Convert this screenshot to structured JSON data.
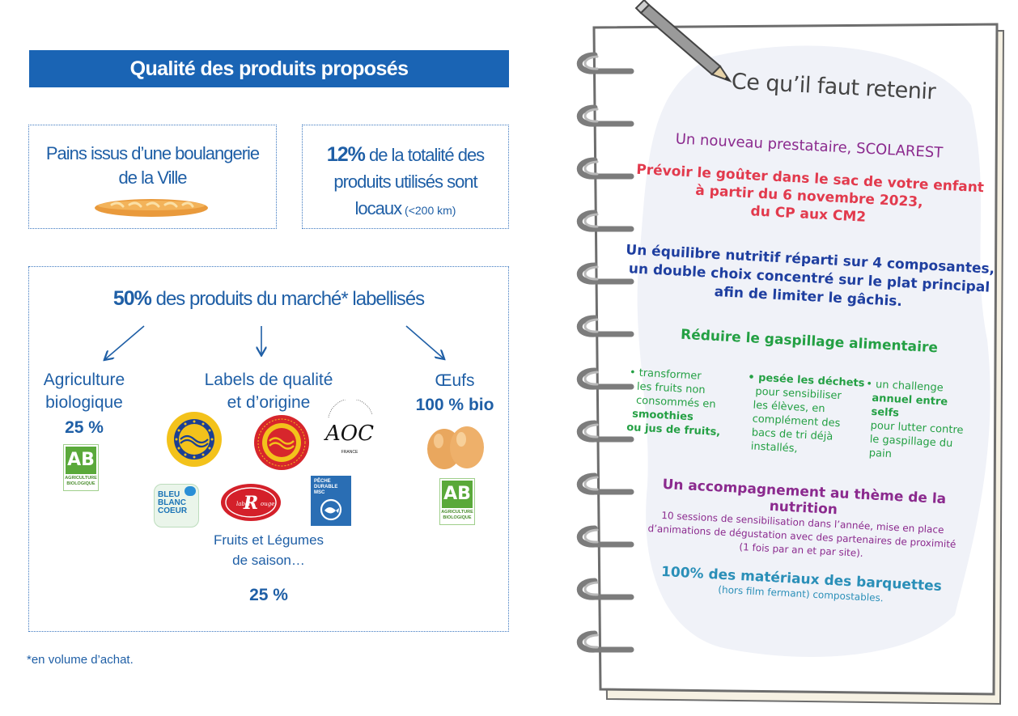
{
  "left": {
    "title": "Qualité des produits proposés",
    "box_bread": {
      "line1": "Pains issus d’une boulangerie",
      "line2": "de la Ville"
    },
    "box_local": {
      "pct": "12%",
      "text1": " de la totalité des",
      "text2": "produits utilisés sont",
      "text3": "locaux",
      "note": " (<200 km)"
    },
    "labels": {
      "headline_pct": "50%",
      "headline_text": " des produits du marché* labellisés",
      "bio": {
        "line1": "Agriculture",
        "line2": "biologique",
        "pct": "25 %"
      },
      "quality": {
        "line1": "Labels de qualité",
        "line2": "et d’origine"
      },
      "eggs": {
        "line1": "Œufs",
        "bold": "100 % bio"
      },
      "fruits": {
        "line1": "Fruits et Légumes",
        "line2": "de saison…",
        "pct": "25 %"
      },
      "ab_logo": {
        "letters": "AB",
        "caption1": "AGRICULTURE",
        "caption2": "BIOLOGIQUE"
      },
      "aoc": {
        "letters": "AOC",
        "circle_text": "appellation d'origine contrôlée",
        "bottom": "FRANCE"
      },
      "bbc": {
        "line1": "BLEU",
        "line2": "BLANC",
        "line3": "COEUR"
      },
      "label_rouge": "Label Rouge",
      "msc": {
        "line1": "PÊCHE",
        "line2": "DURABLE",
        "line3": "MSC"
      }
    },
    "footnote": "*en volume d’achat."
  },
  "notebook": {
    "heading": "Ce qu’il faut retenir",
    "p1": "Un nouveau prestataire, SCOLAREST",
    "p2": {
      "line1": "Prévoir le goûter dans le sac de votre enfant",
      "line2": "à partir du 6 novembre 2023,",
      "line3": "du CP aux CM2"
    },
    "p3": {
      "line1": "Un équilibre nutritif réparti sur 4 composantes,",
      "line2": "un double choix concentré sur le plat principal",
      "line3": "afin de limiter le gâchis."
    },
    "p4": "Réduire le gaspillage alimentaire",
    "col1": {
      "l1": "• transformer",
      "l2": "les fruits non",
      "l3": "consommés en",
      "l4": "smoothies",
      "l5": "ou jus de fruits,"
    },
    "col2": {
      "l1": "• pesée les déchets",
      "l2": "pour sensibiliser",
      "l3": "les élèves, en",
      "l4": "complément des",
      "l5": "bacs de tri déjà",
      "l6": "installés,"
    },
    "col3": {
      "l1": "• un challenge",
      "l2": "annuel entre selfs",
      "l3": "pour lutter contre",
      "l4": "le gaspillage du",
      "l5": "pain"
    },
    "p5": {
      "title": "Un accompagnement au thème de la nutrition",
      "line1": "10 sessions de sensibilisation dans l’année, mise en place",
      "line2": "d’animations de dégustation avec des partenaires de proximité",
      "line3": "(1 fois par an et par site)."
    },
    "p6": {
      "title": "100% des matériaux des barquettes",
      "line1": "(hors film fermant) compostables."
    }
  },
  "colors": {
    "blue": "#1f5fa6",
    "title_bar": "#1a64b4",
    "purple": "#8b2a8e",
    "red": "#e23a4d",
    "navy": "#1f3fa0",
    "green": "#24a044",
    "teal": "#2a8fb8"
  }
}
